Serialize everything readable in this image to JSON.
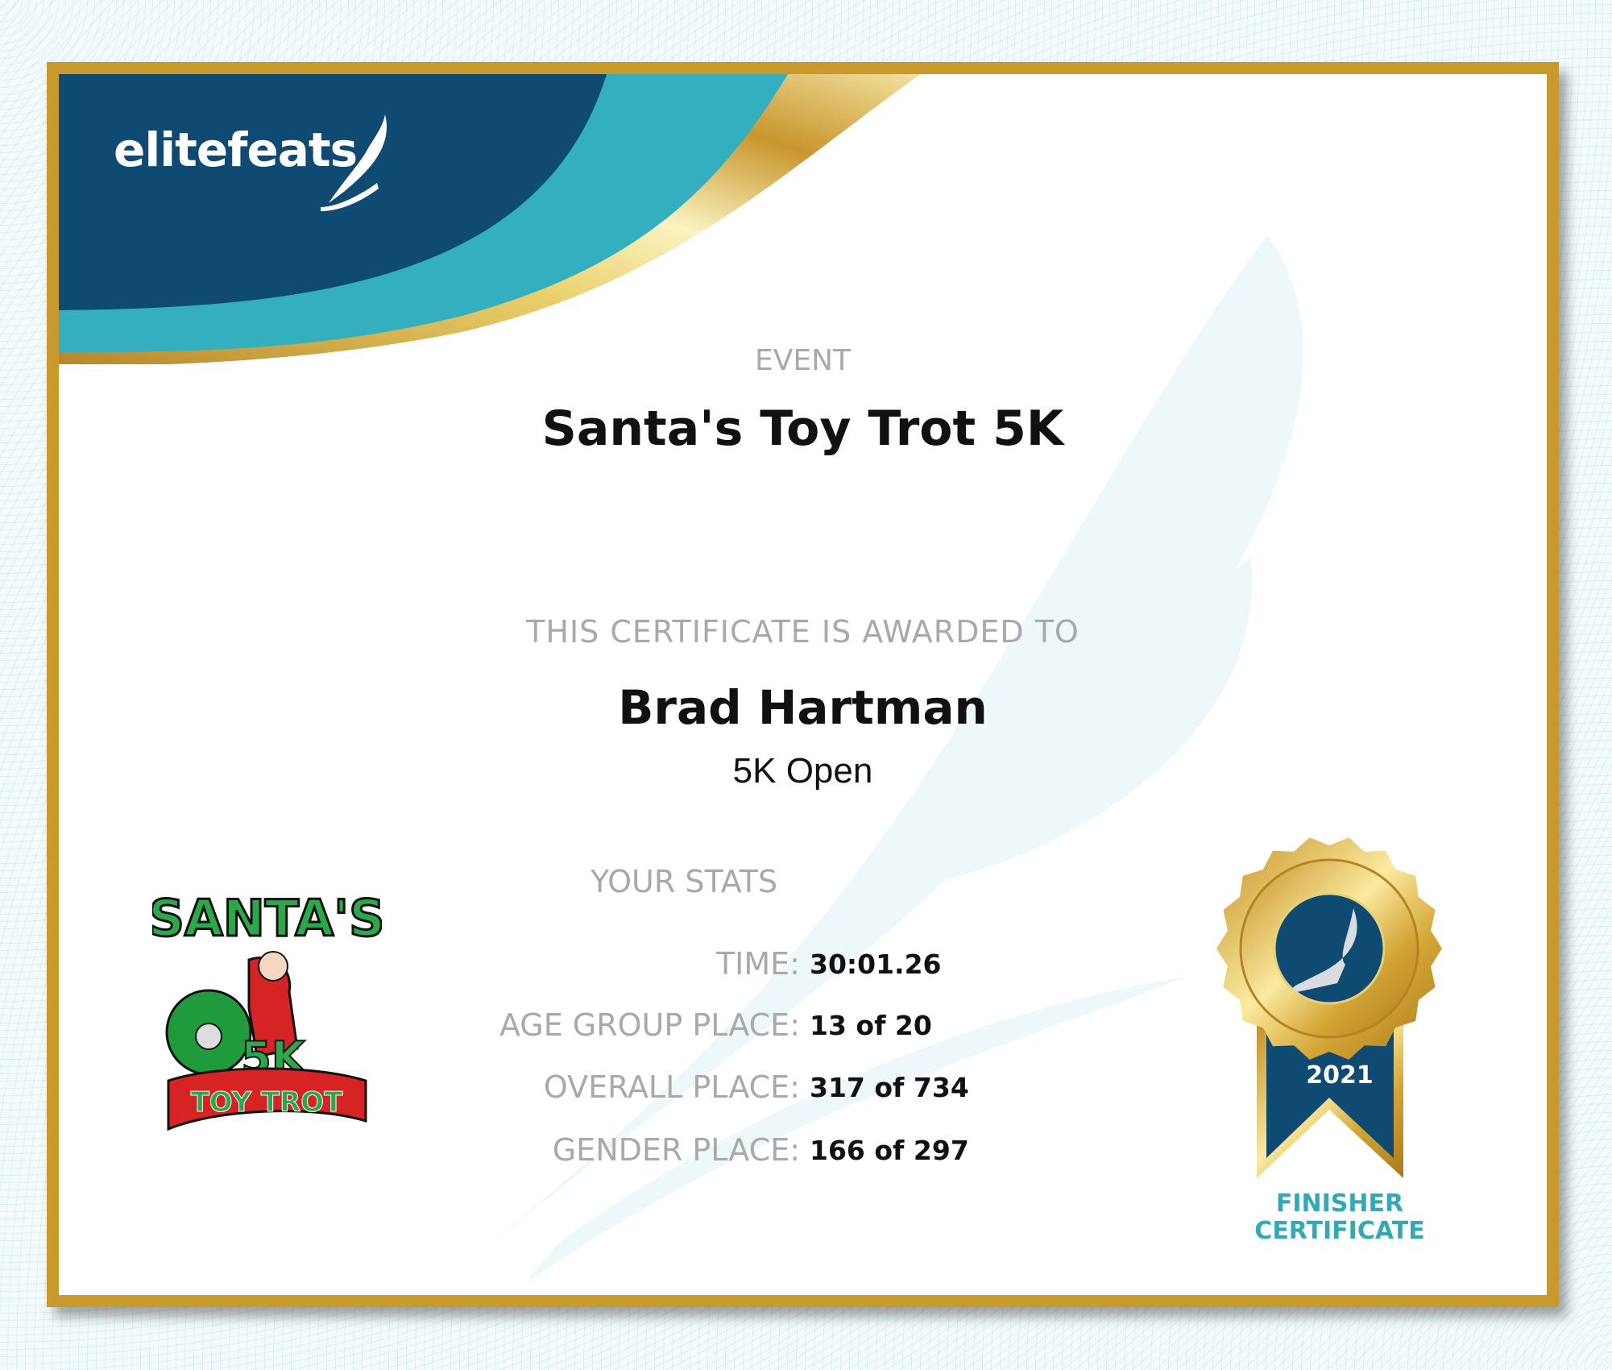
{
  "brand": {
    "name": "elitefeats",
    "colors": {
      "navy": "#0f4a73",
      "teal": "#33afbf",
      "gold": "#c89a2e"
    }
  },
  "event": {
    "label": "EVENT",
    "title": "Santa's Toy Trot 5K"
  },
  "award": {
    "label": "THIS CERTIFICATE IS AWARDED TO",
    "name": "Brad Hartman",
    "division": "5K Open"
  },
  "stats": {
    "title": "YOUR STATS",
    "rows": [
      {
        "label": "TIME:",
        "value": "30:01.26"
      },
      {
        "label": "AGE GROUP PLACE:",
        "value": "13 of 20"
      },
      {
        "label": "OVERALL PLACE:",
        "value": "317 of 734"
      },
      {
        "label": "GENDER PLACE:",
        "value": "166 of 297"
      }
    ]
  },
  "event_logo": {
    "text": "SANTA'S 5K TOY TROT"
  },
  "medal": {
    "year": "2021",
    "caption_line1": "FINISHER",
    "caption_line2": "CERTIFICATE"
  }
}
